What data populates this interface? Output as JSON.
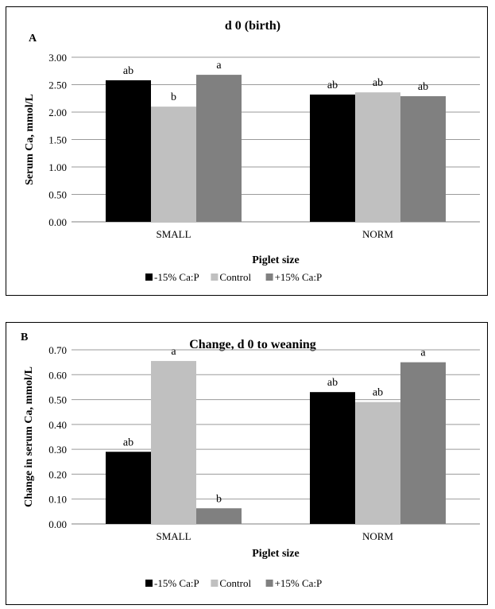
{
  "chart_data": [
    {
      "type": "bar",
      "panel_letter": "A",
      "title": "d 0 (birth)",
      "xlabel": "Piglet size",
      "ylabel": "Serum Ca, mmol/L",
      "categories": [
        "SMALL",
        "NORM"
      ],
      "ylim": [
        0,
        3.0
      ],
      "yticks": [
        "0.00",
        "0.50",
        "1.00",
        "1.50",
        "2.00",
        "2.50",
        "3.00"
      ],
      "grid": true,
      "legend_position": "bottom",
      "series": [
        {
          "name": "-15% Ca:P",
          "color": "#000000",
          "values": [
            2.58,
            2.32
          ],
          "labels": [
            "ab",
            "ab"
          ]
        },
        {
          "name": "Control",
          "color": "#c0c0c0",
          "values": [
            2.1,
            2.36
          ],
          "labels": [
            "b",
            "ab"
          ]
        },
        {
          "name": "+15% Ca:P",
          "color": "#808080",
          "values": [
            2.68,
            2.29
          ],
          "labels": [
            "a",
            "ab"
          ]
        }
      ]
    },
    {
      "type": "bar",
      "panel_letter": "B",
      "title": "Change, d 0 to weaning",
      "xlabel": "Piglet size",
      "ylabel": "Change in serum Ca, mmol/L",
      "categories": [
        "SMALL",
        "NORM"
      ],
      "ylim": [
        0,
        0.7
      ],
      "yticks": [
        "0.00",
        "0.10",
        "0.20",
        "0.30",
        "0.40",
        "0.50",
        "0.60",
        "0.70"
      ],
      "grid": true,
      "legend_position": "bottom",
      "series": [
        {
          "name": "-15% Ca:P",
          "color": "#000000",
          "values": [
            0.29,
            0.53
          ],
          "labels": [
            "ab",
            "ab"
          ]
        },
        {
          "name": "Control",
          "color": "#c0c0c0",
          "values": [
            0.655,
            0.49
          ],
          "labels": [
            "a",
            "ab"
          ]
        },
        {
          "name": "+15% Ca:P",
          "color": "#808080",
          "values": [
            0.063,
            0.65
          ],
          "labels": [
            "b",
            "a"
          ]
        }
      ]
    }
  ]
}
